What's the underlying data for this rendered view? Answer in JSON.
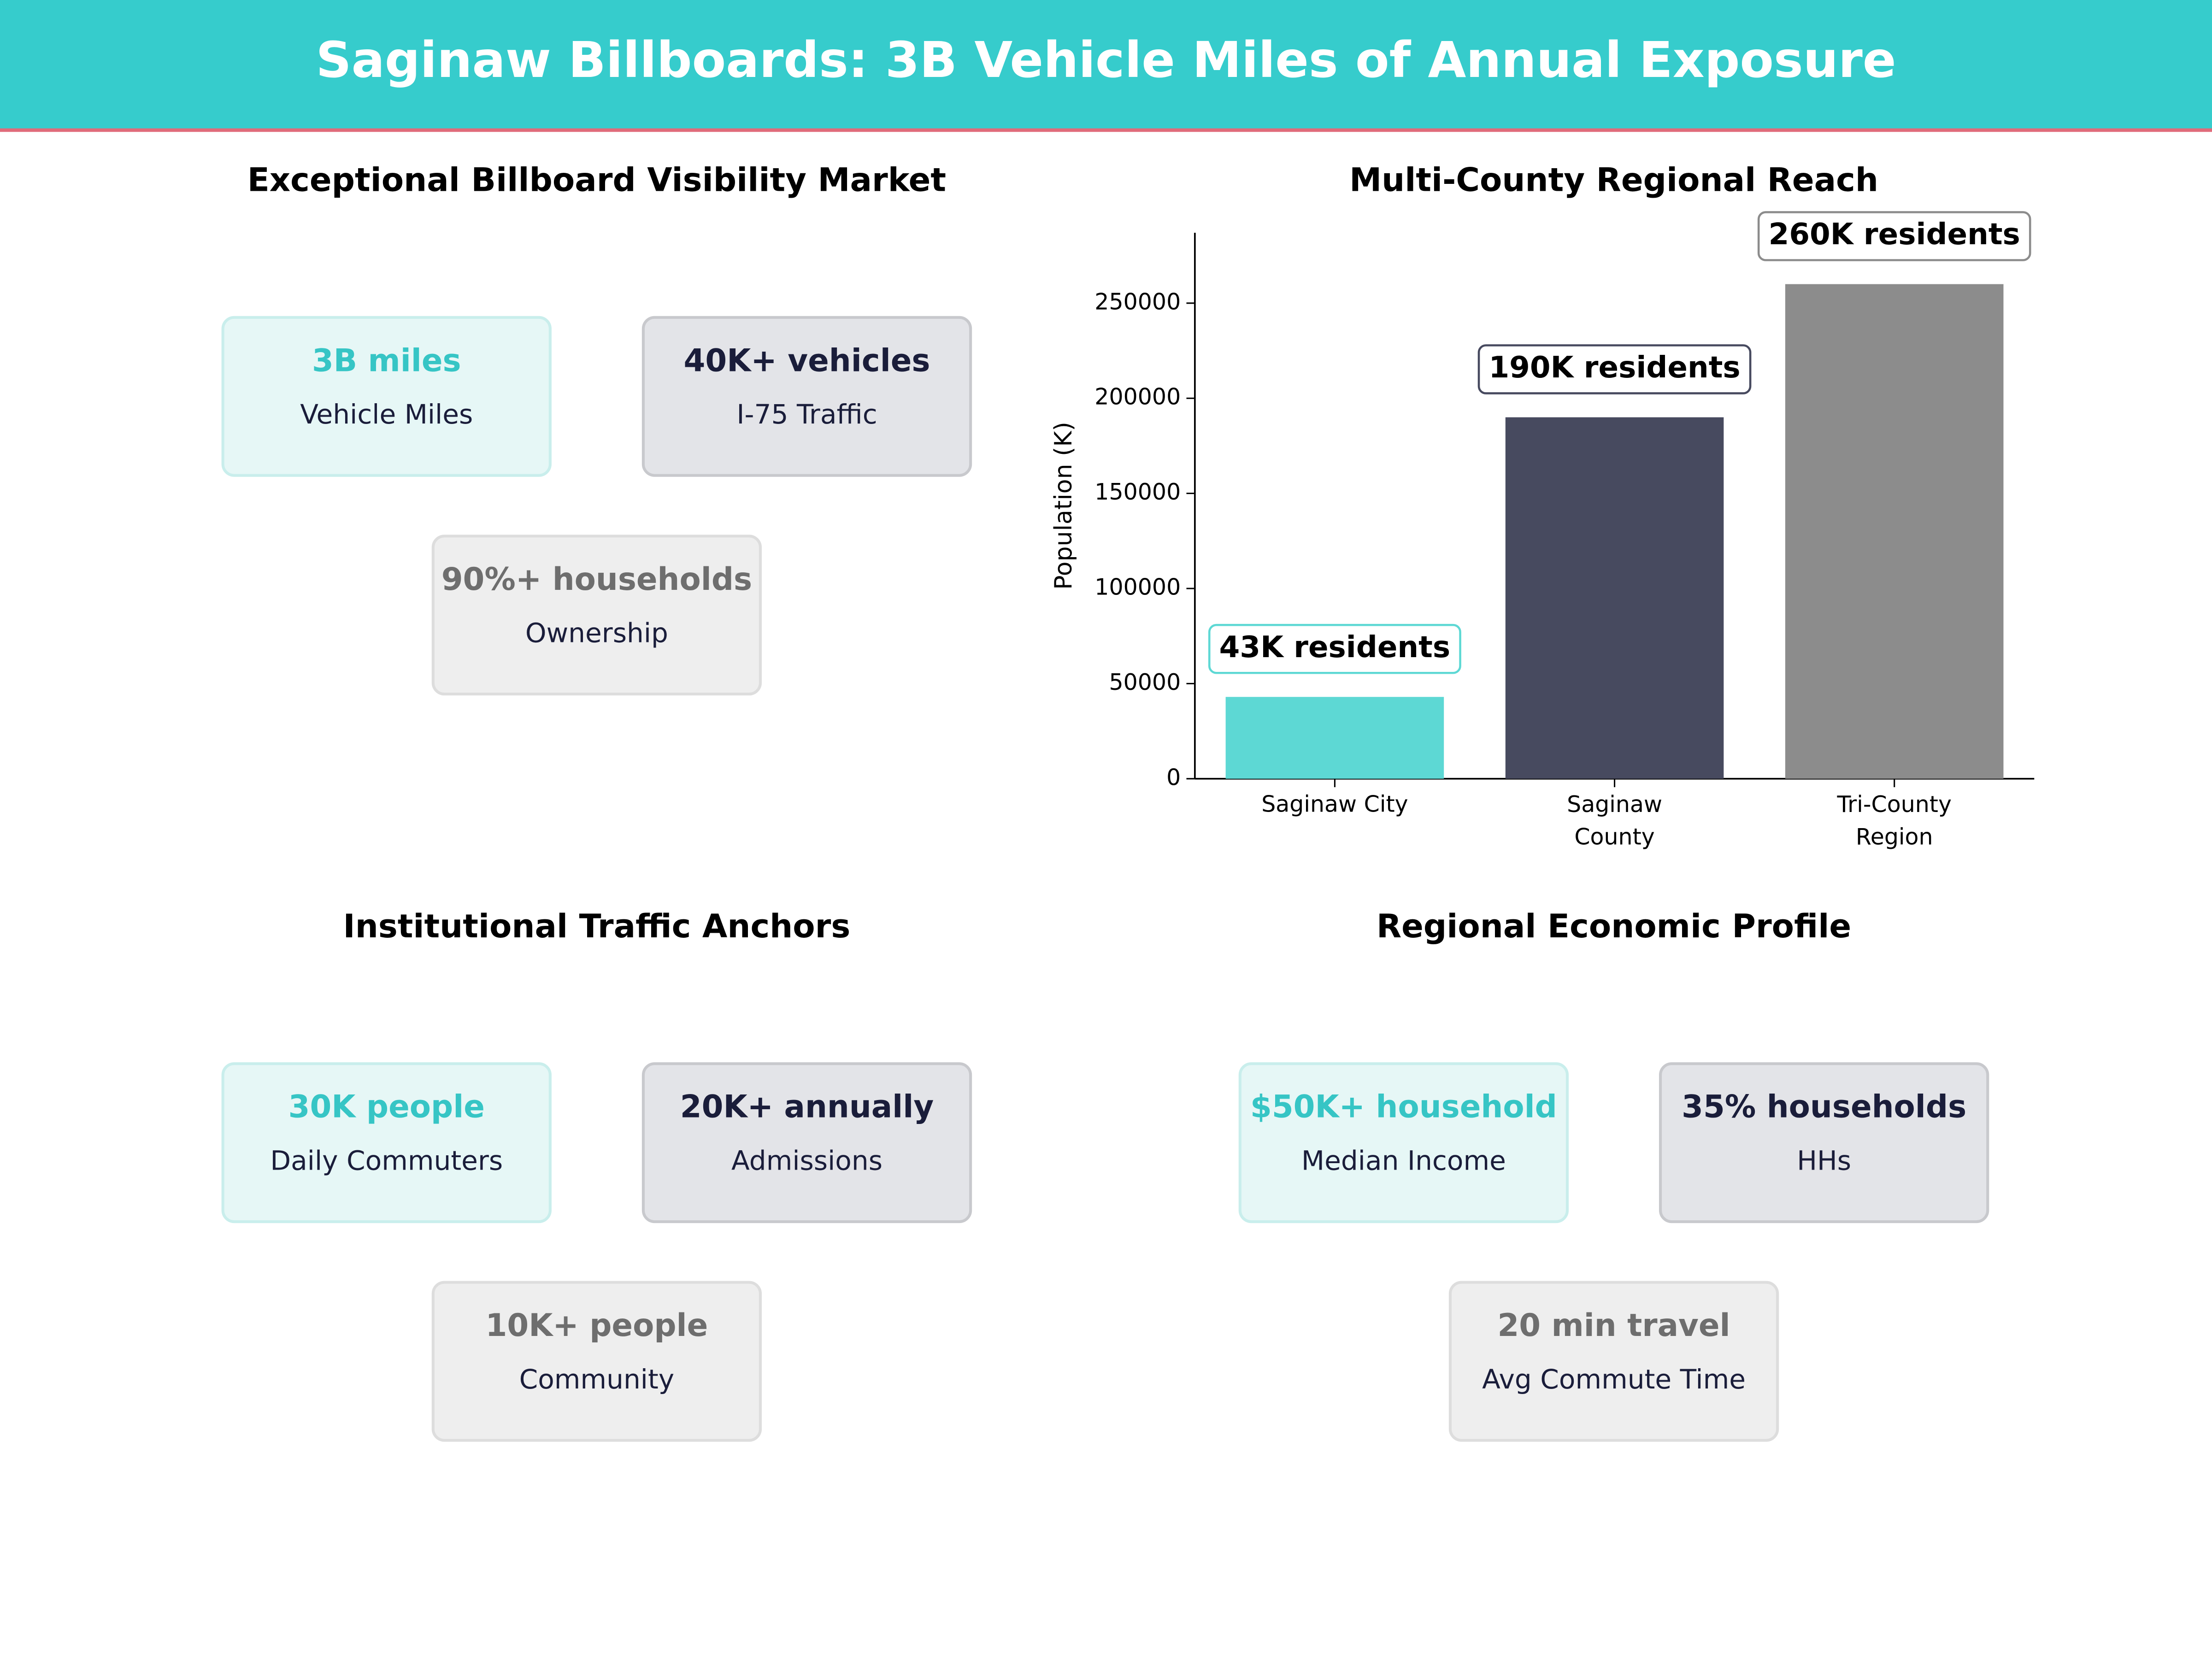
{
  "title": "Saginaw Billboards: 3B Vehicle Miles of Annual Exposure",
  "panels": [
    {
      "title": "Exceptional Billboard Visibility Market",
      "cards": [
        {
          "value": "3B miles",
          "label": "Vehicle Miles"
        },
        {
          "value": "40K+ vehicles",
          "label": "I-75 Traffic"
        },
        {
          "value": "90%+ households",
          "label": "Ownership"
        }
      ]
    },
    {
      "title": "Institutional Traffic Anchors",
      "cards": [
        {
          "value": "30K people",
          "label": "Daily Commuters"
        },
        {
          "value": "20K+ annually",
          "label": "Admissions"
        },
        {
          "value": "10K+ people",
          "label": "Community"
        }
      ]
    },
    {
      "title": "Regional Economic Profile",
      "cards": [
        {
          "value": "$50K+ household",
          "label": "Median Income"
        },
        {
          "value": "35% households",
          "label": "HHs"
        },
        {
          "value": "20 min travel",
          "label": "Avg Commute Time"
        }
      ]
    }
  ],
  "chart_data": {
    "type": "bar",
    "title": "Multi-County Regional Reach",
    "ylabel": "Population (K)",
    "categories": [
      "Saginaw City",
      "Saginaw County",
      "Tri-County Region"
    ],
    "values": [
      43000,
      190000,
      260000
    ],
    "value_labels": [
      "43K residents",
      "190K residents",
      "260K residents"
    ],
    "colors": [
      "#5dd8d4",
      "#474a5f",
      "#8c8c8c"
    ],
    "ylim": [
      0,
      287000
    ],
    "yticks": [
      0,
      50000,
      100000,
      150000,
      200000,
      250000
    ]
  }
}
